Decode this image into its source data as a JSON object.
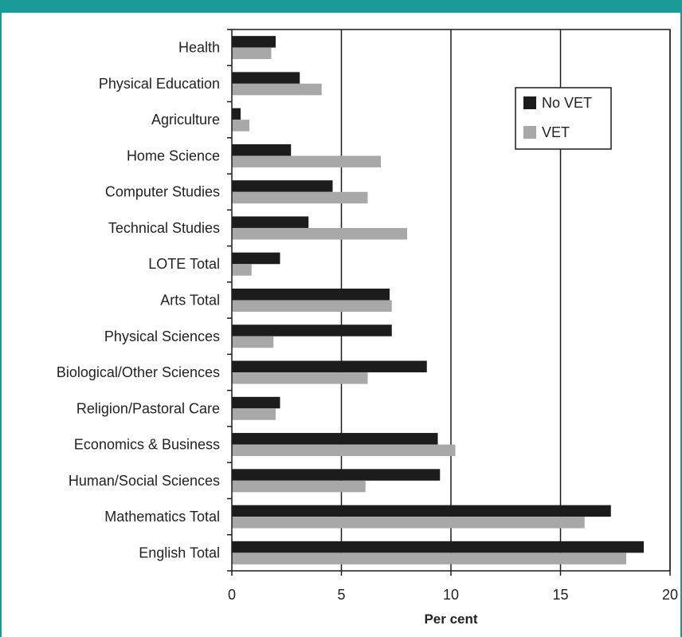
{
  "chart_data": {
    "type": "bar",
    "orientation": "horizontal",
    "categories": [
      "Health",
      "Physical Education",
      "Agriculture",
      "Home Science",
      "Computer Studies",
      "Technical Studies",
      "LOTE Total",
      "Arts Total",
      "Physical Sciences",
      "Biological/Other Sciences",
      "Religion/Pastoral Care",
      "Economics & Business",
      "Human/Social Sciences",
      "Mathematics Total",
      "English Total"
    ],
    "series": [
      {
        "name": "No VET",
        "color": "#1c1c1c",
        "values": [
          2.0,
          3.1,
          0.4,
          2.7,
          4.6,
          3.5,
          2.2,
          7.2,
          7.3,
          8.9,
          2.2,
          9.4,
          9.5,
          17.3,
          18.8
        ]
      },
      {
        "name": "VET",
        "color": "#a8a8a8",
        "values": [
          1.8,
          4.1,
          0.8,
          6.8,
          6.2,
          8.0,
          0.9,
          7.3,
          1.9,
          6.2,
          2.0,
          10.2,
          6.1,
          16.1,
          18.0
        ]
      }
    ],
    "xlabel": "Per cent",
    "ylabel": "",
    "xlim": [
      0,
      20
    ],
    "xticks": [
      0,
      5,
      10,
      15,
      20
    ],
    "grid": "vertical major lines at 5, 10, 15",
    "legend": "top-right"
  }
}
